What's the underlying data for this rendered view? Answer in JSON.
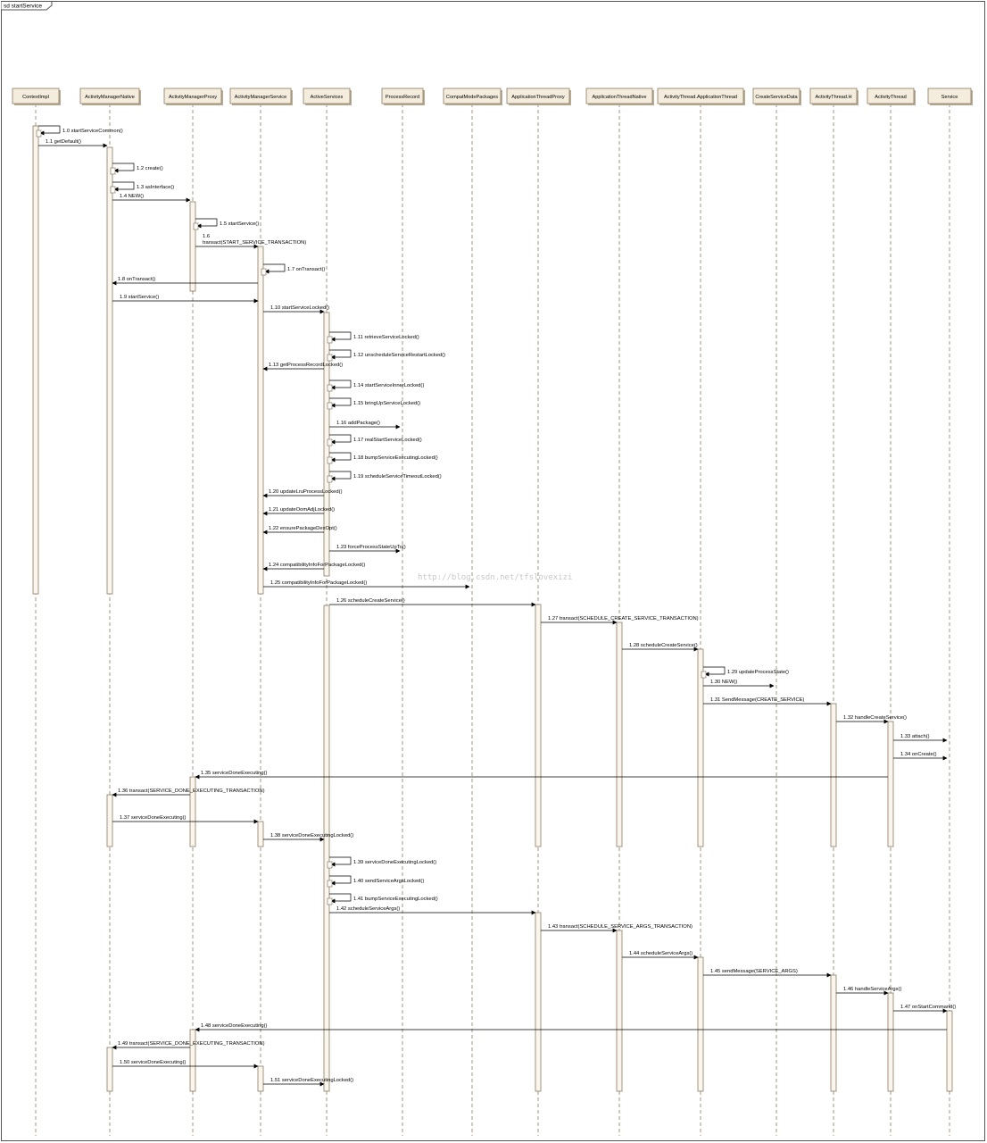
{
  "diagram_title": "sd startService",
  "watermark": "http://blog.csdn.net/tfslovexizi",
  "colors": {
    "lifeline_fill": "#f4ecdc",
    "lifeline_stroke": "#8a7a62",
    "activation_fill": "#faf6ee",
    "border": "#555555",
    "arrow": "#000000"
  },
  "participants": [
    {
      "id": "contextimpl",
      "label": "ContextImpl"
    },
    {
      "id": "amn",
      "label": "ActivityManagerNative"
    },
    {
      "id": "amp",
      "label": "ActivityManagerProxy"
    },
    {
      "id": "ams",
      "label": "ActivityManagerService"
    },
    {
      "id": "as",
      "label": "ActiveServices"
    },
    {
      "id": "pr",
      "label": "ProcessRecord"
    },
    {
      "id": "cmp",
      "label": "CompatModePackages"
    },
    {
      "id": "atp",
      "label": "ApplicationThreadProxy"
    },
    {
      "id": "atn",
      "label": "ApplicationThreadNative"
    },
    {
      "id": "atat",
      "label": "ActivityThread.ApplicationThread"
    },
    {
      "id": "csd",
      "label": "CreateServiceData"
    },
    {
      "id": "ath",
      "label": "ActivityThread.H"
    },
    {
      "id": "at",
      "label": "ActivityThread"
    },
    {
      "id": "svc",
      "label": "Service"
    }
  ],
  "messages": [
    {
      "label": "1.0 startServiceCommon()",
      "from": "contextimpl",
      "to": "contextimpl"
    },
    {
      "label": "1.1 getDefault()",
      "from": "contextimpl",
      "to": "amn"
    },
    {
      "label": "1.2 create()",
      "from": "amn",
      "to": "amn"
    },
    {
      "label": "1.3 asInterface()",
      "from": "amn",
      "to": "amn"
    },
    {
      "label": "1.4 NEW()",
      "from": "amn",
      "to": "amp"
    },
    {
      "label": "1.5 startService()",
      "from": "amp",
      "to": "amp"
    },
    {
      "label": "1.6",
      "label2": "transact(START_SERVICE_TRANSACTION)",
      "from": "amp",
      "to": "ams"
    },
    {
      "label": "1.7 onTransact()",
      "from": "ams",
      "to": "ams"
    },
    {
      "label": "1.8 onTransact()",
      "from": "ams",
      "to": "amn"
    },
    {
      "label": "1.9 startService()",
      "from": "amn",
      "to": "ams"
    },
    {
      "label": "1.10 startServiceLocked()",
      "from": "ams",
      "to": "as"
    },
    {
      "label": "1.11 retrieveServiceLocked()",
      "from": "as",
      "to": "as"
    },
    {
      "label": "1.12 unscheduleServiceRestartLocked()",
      "from": "as",
      "to": "as"
    },
    {
      "label": "1.13 getProcessRecordLocked()",
      "from": "as",
      "to": "ams"
    },
    {
      "label": "1.14 startServiceInnerLocked()",
      "from": "as",
      "to": "as"
    },
    {
      "label": "1.15 bringUpServiceLocked()",
      "from": "as",
      "to": "as"
    },
    {
      "label": "1.16 addPackage()",
      "from": "as",
      "to": "pr"
    },
    {
      "label": "1.17 realStartServiceLocked()",
      "from": "as",
      "to": "as"
    },
    {
      "label": "1.18 bumpServiceExecutingLocked()",
      "from": "as",
      "to": "as"
    },
    {
      "label": "1.19 scheduleServiceTimeoutLocked()",
      "from": "as",
      "to": "as"
    },
    {
      "label": "1.20 updateLruProcessLocked()",
      "from": "as",
      "to": "ams"
    },
    {
      "label": "1.21 updateOomAdjLocked()",
      "from": "as",
      "to": "ams"
    },
    {
      "label": "1.22 ensurePackageDexOpt()",
      "from": "as",
      "to": "ams"
    },
    {
      "label": "1.23 forceProcessStateUpTo()",
      "from": "as",
      "to": "pr"
    },
    {
      "label": "1.24 compatibilityInfoForPackageLocked()",
      "from": "as",
      "to": "ams"
    },
    {
      "label": "1.25 compatibilityInfoForPackageLocked()",
      "from": "ams",
      "to": "cmp"
    },
    {
      "label": "1.26 scheduleCreateService()",
      "from": "as",
      "to": "atp"
    },
    {
      "label": "1.27 transact(SCHEDULE_CREATE_SERVICE_TRANSACTION)",
      "from": "atp",
      "to": "atn"
    },
    {
      "label": "1.28 scheduleCreateService()",
      "from": "atn",
      "to": "atat"
    },
    {
      "label": "1.29 updateProcessState()",
      "from": "atat",
      "to": "atat"
    },
    {
      "label": "1.30 NEW()",
      "from": "atat",
      "to": "csd"
    },
    {
      "label": "1.31 SendMessage(CREATE_SERVICE)",
      "from": "atat",
      "to": "ath"
    },
    {
      "label": "1.32 handleCreateService()",
      "from": "ath",
      "to": "at"
    },
    {
      "label": "1.33 attach()",
      "from": "at",
      "to": "svc"
    },
    {
      "label": "1.34 onCreate()",
      "from": "at",
      "to": "svc"
    },
    {
      "label": "1.35 serviceDoneExecuting()",
      "from": "at",
      "to": "amp"
    },
    {
      "label": "1.36 transact(SERVICE_DONE_EXECUTING_TRANSACTION)",
      "from": "amp",
      "to": "amn"
    },
    {
      "label": "1.37 serviceDoneExecuting()",
      "from": "amn",
      "to": "ams"
    },
    {
      "label": "1.38 serviceDoneExecutingLocked()",
      "from": "ams",
      "to": "as"
    },
    {
      "label": "1.39 serviceDoneExecutingLocked()",
      "from": "as",
      "to": "as"
    },
    {
      "label": "1.40 sendServiceArgsLocked()",
      "from": "as",
      "to": "as"
    },
    {
      "label": "1.41 bumpServiceExecutingLocked()",
      "from": "as",
      "to": "as"
    },
    {
      "label": "1.42 scheduleServiceArgs()",
      "from": "as",
      "to": "atp"
    },
    {
      "label": "1.43 transact(SCHEDULE_SERVICE_ARGS_TRANSACTION)",
      "from": "atp",
      "to": "atn"
    },
    {
      "label": "1.44 scheduleServiceArgs()",
      "from": "atn",
      "to": "atat"
    },
    {
      "label": "1.45 sendMessage(SERVICE_ARGS)",
      "from": "atat",
      "to": "ath"
    },
    {
      "label": "1.46 handleServiceArgs()",
      "from": "ath",
      "to": "at"
    },
    {
      "label": "1.47 onStartCommand()",
      "from": "at",
      "to": "svc"
    },
    {
      "label": "1.48 serviceDoneExecuting()",
      "from": "svc",
      "to": "amp"
    },
    {
      "label": "1.49 transact(SERVICE_DONE_EXECUTING_TRANSACTION)",
      "from": "amp",
      "to": "amn"
    },
    {
      "label": "1.50 serviceDoneExecuting()",
      "from": "amn",
      "to": "ams"
    },
    {
      "label": "1.51 serviceDoneExecutingLocked()",
      "from": "ams",
      "to": "as"
    }
  ]
}
